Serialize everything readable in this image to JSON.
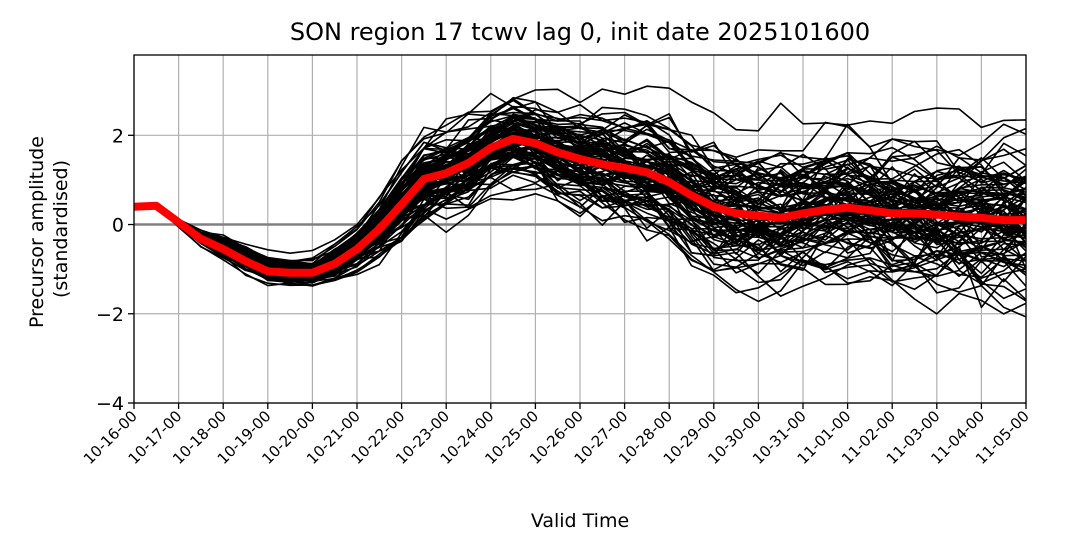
{
  "chart_data": {
    "type": "line",
    "title": "SON region 17 tcwv lag 0, init date 2025101600",
    "xlabel": "Valid Time",
    "ylabel_lines": [
      "Precursor amplitude",
      "(standardised)"
    ],
    "ylim": [
      -4,
      3.8
    ],
    "yticks": [
      -4,
      -2,
      0,
      2
    ],
    "ytick_labels": [
      "−4",
      "−2",
      "0",
      "2"
    ],
    "xlim": [
      0,
      40
    ],
    "x_tick_positions": [
      0,
      2,
      4,
      6,
      8,
      10,
      12,
      14,
      16,
      18,
      20,
      22,
      24,
      26,
      28,
      30,
      32,
      34,
      36,
      38,
      40
    ],
    "x_tick_labels": [
      "10-16-00",
      "10-17-00",
      "10-18-00",
      "10-19-00",
      "10-20-00",
      "10-21-00",
      "10-22-00",
      "10-23-00",
      "10-24-00",
      "10-25-00",
      "10-26-00",
      "10-27-00",
      "10-28-00",
      "10-29-00",
      "10-30-00",
      "10-31-00",
      "11-01-00",
      "11-02-00",
      "11-03-00",
      "11-04-00",
      "11-05-00"
    ],
    "grid": true,
    "zero_line": {
      "y": 0,
      "color": "#808080"
    },
    "ensemble": {
      "color": "#000000",
      "member_count": 100,
      "x_step": 1,
      "mean": [
        0.4,
        0.4,
        0.05,
        -0.3,
        -0.5,
        -0.75,
        -1.0,
        -1.05,
        -1.05,
        -0.85,
        -0.55,
        -0.1,
        0.45,
        1.0,
        1.15,
        1.35,
        1.7,
        1.9,
        1.8,
        1.6,
        1.45,
        1.35,
        1.25,
        1.15,
        0.95,
        0.65,
        0.4,
        0.25,
        0.2,
        0.15,
        0.25,
        0.35,
        0.38,
        0.3,
        0.25,
        0.25,
        0.2,
        0.18,
        0.15,
        0.1,
        0.1
      ],
      "spread": [
        0.0,
        0.0,
        0.05,
        0.1,
        0.15,
        0.2,
        0.2,
        0.2,
        0.2,
        0.25,
        0.3,
        0.4,
        0.55,
        0.65,
        0.7,
        0.7,
        0.65,
        0.65,
        0.65,
        0.7,
        0.75,
        0.8,
        0.8,
        0.85,
        0.9,
        0.95,
        1.0,
        1.0,
        1.0,
        1.05,
        1.05,
        1.05,
        1.05,
        1.05,
        1.1,
        1.1,
        1.15,
        1.15,
        1.2,
        1.2,
        1.25
      ]
    },
    "series": [
      {
        "color": "#ff0000",
        "values": [
          0.4,
          0.42,
          0.05,
          -0.32,
          -0.55,
          -0.82,
          -1.05,
          -1.08,
          -1.08,
          -0.88,
          -0.55,
          -0.1,
          0.45,
          1.02,
          1.15,
          1.38,
          1.72,
          1.92,
          1.82,
          1.62,
          1.47,
          1.35,
          1.27,
          1.17,
          0.95,
          0.65,
          0.4,
          0.25,
          0.2,
          0.15,
          0.25,
          0.33,
          0.38,
          0.32,
          0.25,
          0.25,
          0.22,
          0.18,
          0.15,
          0.1,
          0.1
        ]
      }
    ]
  }
}
